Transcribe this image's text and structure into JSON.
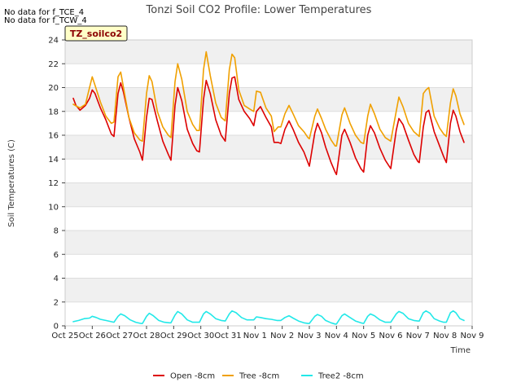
{
  "chart_data": {
    "type": "line",
    "title": "Tonzi Soil CO2 Profile: Lower Temperatures",
    "xlabel": "Time",
    "ylabel": "Soil Temperatures (C)",
    "ylim": [
      0,
      24
    ],
    "yticks": [
      0,
      2,
      4,
      6,
      8,
      10,
      12,
      14,
      16,
      18,
      20,
      22,
      24
    ],
    "xlim": [
      0,
      15
    ],
    "xticks": [
      {
        "x": 0,
        "label": "Oct 25"
      },
      {
        "x": 1,
        "label": "Oct 26"
      },
      {
        "x": 2,
        "label": "Oct 27"
      },
      {
        "x": 3,
        "label": "Oct 28"
      },
      {
        "x": 4,
        "label": "Oct 29"
      },
      {
        "x": 5,
        "label": "Oct 30"
      },
      {
        "x": 6,
        "label": "Oct 31"
      },
      {
        "x": 7,
        "label": "Nov 1"
      },
      {
        "x": 8,
        "label": "Nov 2"
      },
      {
        "x": 9,
        "label": "Nov 3"
      },
      {
        "x": 10,
        "label": "Nov 4"
      },
      {
        "x": 11,
        "label": "Nov 5"
      },
      {
        "x": 12,
        "label": "Nov 6"
      },
      {
        "x": 13,
        "label": "Nov 7"
      },
      {
        "x": 14,
        "label": "Nov 8"
      },
      {
        "x": 15,
        "label": "Nov 9"
      }
    ],
    "grid": "horizontal bands",
    "legend_position": "bottom",
    "series": [
      {
        "name": "Open -8cm",
        "color": "#dd0000",
        "points": [
          [
            0.3,
            19.1
          ],
          [
            0.4,
            18.5
          ],
          [
            0.55,
            18.1
          ],
          [
            0.75,
            18.5
          ],
          [
            0.9,
            19.1
          ],
          [
            1.0,
            19.8
          ],
          [
            1.1,
            19.5
          ],
          [
            1.3,
            18.3
          ],
          [
            1.5,
            17.3
          ],
          [
            1.7,
            16.1
          ],
          [
            1.8,
            15.9
          ],
          [
            1.95,
            19.5
          ],
          [
            2.05,
            20.4
          ],
          [
            2.15,
            19.6
          ],
          [
            2.35,
            17.5
          ],
          [
            2.55,
            15.7
          ],
          [
            2.75,
            14.6
          ],
          [
            2.85,
            13.9
          ],
          [
            3.0,
            17.5
          ],
          [
            3.1,
            19.1
          ],
          [
            3.2,
            19.0
          ],
          [
            3.4,
            17.2
          ],
          [
            3.6,
            15.5
          ],
          [
            3.8,
            14.4
          ],
          [
            3.9,
            13.9
          ],
          [
            4.05,
            18.5
          ],
          [
            4.15,
            20.0
          ],
          [
            4.3,
            18.9
          ],
          [
            4.5,
            16.5
          ],
          [
            4.7,
            15.3
          ],
          [
            4.85,
            14.7
          ],
          [
            4.95,
            14.6
          ],
          [
            5.1,
            19.0
          ],
          [
            5.2,
            20.6
          ],
          [
            5.35,
            19.5
          ],
          [
            5.55,
            17.3
          ],
          [
            5.75,
            16.0
          ],
          [
            5.9,
            15.5
          ],
          [
            6.05,
            19.5
          ],
          [
            6.15,
            20.8
          ],
          [
            6.25,
            20.9
          ],
          [
            6.4,
            19.0
          ],
          [
            6.6,
            18.0
          ],
          [
            6.8,
            17.4
          ],
          [
            6.95,
            16.8
          ],
          [
            7.05,
            18.0
          ],
          [
            7.2,
            18.4
          ],
          [
            7.4,
            17.5
          ],
          [
            7.6,
            16.7
          ],
          [
            7.7,
            15.4
          ],
          [
            7.85,
            15.4
          ],
          [
            7.95,
            15.3
          ],
          [
            8.1,
            16.5
          ],
          [
            8.25,
            17.2
          ],
          [
            8.4,
            16.5
          ],
          [
            8.6,
            15.4
          ],
          [
            8.8,
            14.6
          ],
          [
            8.95,
            13.7
          ],
          [
            9.0,
            13.4
          ],
          [
            9.2,
            16.2
          ],
          [
            9.3,
            17.0
          ],
          [
            9.45,
            16.2
          ],
          [
            9.6,
            15.0
          ],
          [
            9.8,
            13.7
          ],
          [
            9.95,
            12.9
          ],
          [
            10.0,
            12.7
          ],
          [
            10.2,
            16.0
          ],
          [
            10.3,
            16.5
          ],
          [
            10.5,
            15.4
          ],
          [
            10.7,
            14.1
          ],
          [
            10.9,
            13.2
          ],
          [
            11.0,
            12.9
          ],
          [
            11.15,
            16.0
          ],
          [
            11.25,
            16.8
          ],
          [
            11.4,
            16.2
          ],
          [
            11.6,
            14.9
          ],
          [
            11.8,
            13.9
          ],
          [
            12.0,
            13.2
          ],
          [
            12.2,
            16.4
          ],
          [
            12.3,
            17.4
          ],
          [
            12.45,
            16.9
          ],
          [
            12.65,
            15.6
          ],
          [
            12.85,
            14.4
          ],
          [
            13.0,
            13.8
          ],
          [
            13.05,
            13.7
          ],
          [
            13.2,
            16.7
          ],
          [
            13.3,
            17.9
          ],
          [
            13.4,
            18.1
          ],
          [
            13.6,
            16.3
          ],
          [
            13.8,
            15.1
          ],
          [
            13.95,
            14.2
          ],
          [
            14.05,
            13.7
          ],
          [
            14.2,
            17.0
          ],
          [
            14.3,
            18.1
          ],
          [
            14.4,
            17.6
          ],
          [
            14.55,
            16.3
          ],
          [
            14.7,
            15.4
          ]
        ]
      },
      {
        "name": "Tree -8cm",
        "color": "#f0a000",
        "points": [
          [
            0.3,
            18.6
          ],
          [
            0.45,
            18.4
          ],
          [
            0.55,
            18.3
          ],
          [
            0.75,
            18.6
          ],
          [
            0.9,
            20.0
          ],
          [
            1.0,
            20.9
          ],
          [
            1.1,
            20.2
          ],
          [
            1.3,
            18.8
          ],
          [
            1.5,
            17.6
          ],
          [
            1.7,
            17.0
          ],
          [
            1.8,
            17.1
          ],
          [
            1.95,
            20.9
          ],
          [
            2.05,
            21.3
          ],
          [
            2.15,
            20.0
          ],
          [
            2.35,
            17.5
          ],
          [
            2.55,
            16.2
          ],
          [
            2.75,
            15.6
          ],
          [
            2.85,
            15.5
          ],
          [
            3.0,
            19.5
          ],
          [
            3.1,
            21.0
          ],
          [
            3.2,
            20.5
          ],
          [
            3.4,
            18.0
          ],
          [
            3.6,
            16.7
          ],
          [
            3.8,
            16.0
          ],
          [
            3.9,
            15.8
          ],
          [
            4.05,
            20.5
          ],
          [
            4.15,
            22.0
          ],
          [
            4.3,
            20.7
          ],
          [
            4.5,
            18.0
          ],
          [
            4.7,
            16.9
          ],
          [
            4.85,
            16.4
          ],
          [
            4.95,
            16.4
          ],
          [
            5.1,
            21.5
          ],
          [
            5.2,
            23.0
          ],
          [
            5.35,
            21.0
          ],
          [
            5.55,
            18.7
          ],
          [
            5.75,
            17.5
          ],
          [
            5.9,
            17.2
          ],
          [
            6.05,
            21.5
          ],
          [
            6.15,
            22.8
          ],
          [
            6.25,
            22.5
          ],
          [
            6.4,
            19.8
          ],
          [
            6.6,
            18.5
          ],
          [
            6.8,
            18.2
          ],
          [
            6.95,
            18.0
          ],
          [
            7.05,
            19.7
          ],
          [
            7.2,
            19.6
          ],
          [
            7.4,
            18.3
          ],
          [
            7.6,
            17.6
          ],
          [
            7.7,
            16.3
          ],
          [
            7.85,
            16.7
          ],
          [
            7.95,
            16.7
          ],
          [
            8.1,
            17.8
          ],
          [
            8.25,
            18.5
          ],
          [
            8.4,
            17.8
          ],
          [
            8.6,
            16.8
          ],
          [
            8.8,
            16.3
          ],
          [
            8.95,
            15.8
          ],
          [
            9.0,
            15.7
          ],
          [
            9.2,
            17.6
          ],
          [
            9.3,
            18.2
          ],
          [
            9.45,
            17.4
          ],
          [
            9.6,
            16.5
          ],
          [
            9.8,
            15.6
          ],
          [
            9.95,
            15.1
          ],
          [
            10.0,
            15.1
          ],
          [
            10.2,
            17.7
          ],
          [
            10.3,
            18.3
          ],
          [
            10.5,
            17.0
          ],
          [
            10.7,
            16.0
          ],
          [
            10.9,
            15.4
          ],
          [
            11.0,
            15.3
          ],
          [
            11.15,
            17.6
          ],
          [
            11.25,
            18.6
          ],
          [
            11.4,
            17.8
          ],
          [
            11.6,
            16.5
          ],
          [
            11.8,
            15.8
          ],
          [
            12.0,
            15.5
          ],
          [
            12.2,
            18.0
          ],
          [
            12.3,
            19.2
          ],
          [
            12.45,
            18.4
          ],
          [
            12.65,
            17.0
          ],
          [
            12.85,
            16.3
          ],
          [
            13.0,
            16.0
          ],
          [
            13.05,
            15.9
          ],
          [
            13.2,
            19.5
          ],
          [
            13.3,
            19.8
          ],
          [
            13.4,
            20.0
          ],
          [
            13.6,
            17.6
          ],
          [
            13.8,
            16.6
          ],
          [
            13.95,
            16.1
          ],
          [
            14.05,
            15.9
          ],
          [
            14.2,
            18.7
          ],
          [
            14.3,
            19.9
          ],
          [
            14.4,
            19.3
          ],
          [
            14.55,
            17.8
          ],
          [
            14.7,
            16.9
          ]
        ]
      },
      {
        "name": "Tree2 -8cm",
        "color": "#22e8e8",
        "points": [
          [
            0.3,
            0.35
          ],
          [
            0.5,
            0.45
          ],
          [
            0.7,
            0.6
          ],
          [
            0.9,
            0.65
          ],
          [
            1.0,
            0.8
          ],
          [
            1.15,
            0.7
          ],
          [
            1.3,
            0.55
          ],
          [
            1.5,
            0.45
          ],
          [
            1.7,
            0.35
          ],
          [
            1.8,
            0.3
          ],
          [
            1.95,
            0.8
          ],
          [
            2.05,
            1.0
          ],
          [
            2.2,
            0.85
          ],
          [
            2.4,
            0.5
          ],
          [
            2.6,
            0.3
          ],
          [
            2.8,
            0.2
          ],
          [
            2.85,
            0.2
          ],
          [
            3.0,
            0.8
          ],
          [
            3.1,
            1.05
          ],
          [
            3.25,
            0.85
          ],
          [
            3.45,
            0.45
          ],
          [
            3.65,
            0.3
          ],
          [
            3.85,
            0.25
          ],
          [
            3.9,
            0.25
          ],
          [
            4.05,
            0.9
          ],
          [
            4.15,
            1.2
          ],
          [
            4.3,
            1.0
          ],
          [
            4.5,
            0.5
          ],
          [
            4.7,
            0.3
          ],
          [
            4.9,
            0.3
          ],
          [
            4.95,
            0.3
          ],
          [
            5.1,
            1.0
          ],
          [
            5.2,
            1.2
          ],
          [
            5.35,
            1.0
          ],
          [
            5.55,
            0.6
          ],
          [
            5.75,
            0.45
          ],
          [
            5.9,
            0.4
          ],
          [
            6.05,
            1.0
          ],
          [
            6.15,
            1.25
          ],
          [
            6.3,
            1.1
          ],
          [
            6.5,
            0.7
          ],
          [
            6.7,
            0.5
          ],
          [
            6.9,
            0.5
          ],
          [
            6.95,
            0.5
          ],
          [
            7.05,
            0.75
          ],
          [
            7.2,
            0.7
          ],
          [
            7.4,
            0.6
          ],
          [
            7.6,
            0.55
          ],
          [
            7.8,
            0.45
          ],
          [
            7.95,
            0.45
          ],
          [
            8.1,
            0.7
          ],
          [
            8.25,
            0.85
          ],
          [
            8.4,
            0.65
          ],
          [
            8.6,
            0.4
          ],
          [
            8.8,
            0.25
          ],
          [
            8.95,
            0.2
          ],
          [
            9.0,
            0.2
          ],
          [
            9.2,
            0.8
          ],
          [
            9.3,
            0.95
          ],
          [
            9.45,
            0.8
          ],
          [
            9.6,
            0.45
          ],
          [
            9.8,
            0.25
          ],
          [
            9.95,
            0.15
          ],
          [
            10.0,
            0.15
          ],
          [
            10.2,
            0.85
          ],
          [
            10.3,
            1.0
          ],
          [
            10.5,
            0.7
          ],
          [
            10.7,
            0.4
          ],
          [
            10.9,
            0.25
          ],
          [
            11.0,
            0.2
          ],
          [
            11.15,
            0.8
          ],
          [
            11.25,
            1.0
          ],
          [
            11.4,
            0.85
          ],
          [
            11.6,
            0.5
          ],
          [
            11.8,
            0.3
          ],
          [
            12.0,
            0.3
          ],
          [
            12.2,
            1.0
          ],
          [
            12.3,
            1.2
          ],
          [
            12.45,
            1.05
          ],
          [
            12.65,
            0.6
          ],
          [
            12.85,
            0.45
          ],
          [
            13.0,
            0.4
          ],
          [
            13.05,
            0.4
          ],
          [
            13.2,
            1.1
          ],
          [
            13.3,
            1.25
          ],
          [
            13.45,
            1.05
          ],
          [
            13.6,
            0.6
          ],
          [
            13.8,
            0.4
          ],
          [
            13.95,
            0.3
          ],
          [
            14.05,
            0.3
          ],
          [
            14.2,
            1.1
          ],
          [
            14.3,
            1.25
          ],
          [
            14.4,
            1.1
          ],
          [
            14.55,
            0.6
          ],
          [
            14.7,
            0.45
          ]
        ]
      }
    ],
    "annotations": [
      "No data for f_TCE_4",
      "No data for f_TCW_4"
    ],
    "badge": "TZ_soilco2"
  }
}
